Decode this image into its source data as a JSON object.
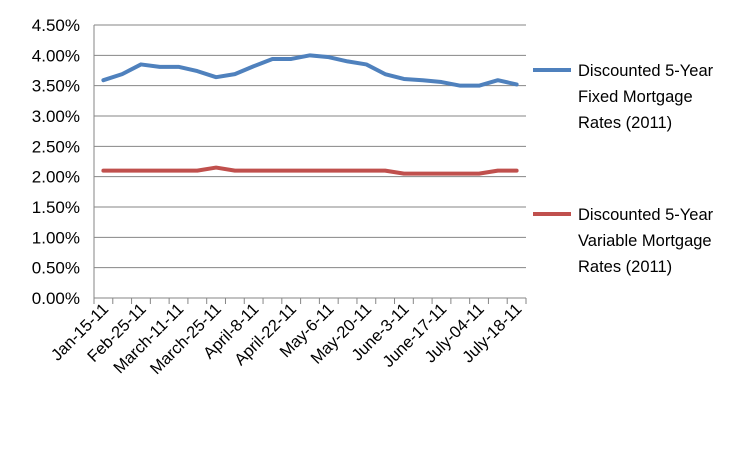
{
  "chart_data": {
    "type": "line",
    "title": "",
    "xlabel": "",
    "ylabel": "",
    "ylim": [
      0,
      0.045
    ],
    "y_ticks": [
      "0.00%",
      "0.50%",
      "1.00%",
      "1.50%",
      "2.00%",
      "2.50%",
      "3.00%",
      "3.50%",
      "4.00%",
      "4.50%"
    ],
    "x_tick_labels": [
      "Jan-15-11",
      "Feb-25-11",
      "March-11-11",
      "March-25-11",
      "April-8-11",
      "April-22-11",
      "May-6-11",
      "May-20-11",
      "June-3-11",
      "June-17-11",
      "July-04-11",
      "July-18-11"
    ],
    "grid": "horizontal",
    "legend_position": "right",
    "series": [
      {
        "name": "Discounted 5-Year Fixed Mortgage Rates (2011)",
        "color": "#4F81BD",
        "values": [
          0.0359,
          0.0369,
          0.0385,
          0.0381,
          0.0381,
          0.0374,
          0.0364,
          0.0369,
          0.0382,
          0.0394,
          0.0394,
          0.04,
          0.0397,
          0.039,
          0.0385,
          0.0369,
          0.0361,
          0.0359,
          0.0356,
          0.035,
          0.035,
          0.0359,
          0.0352
        ]
      },
      {
        "name": "Discounted 5-Year Variable Mortgage Rates (2011)",
        "color": "#C0504D",
        "values": [
          0.021,
          0.021,
          0.021,
          0.021,
          0.021,
          0.021,
          0.0215,
          0.021,
          0.021,
          0.021,
          0.021,
          0.021,
          0.021,
          0.021,
          0.021,
          0.021,
          0.0205,
          0.0205,
          0.0205,
          0.0205,
          0.0205,
          0.021,
          0.021
        ]
      }
    ],
    "legend": {
      "entries": [
        {
          "lines": [
            "Discounted 5-Year",
            "Fixed Mortgage",
            "Rates (2011)"
          ],
          "color": "#4F81BD"
        },
        {
          "lines": [
            "Discounted 5-Year",
            "Variable Mortgage",
            "Rates (2011)"
          ],
          "color": "#C0504D"
        }
      ]
    }
  }
}
